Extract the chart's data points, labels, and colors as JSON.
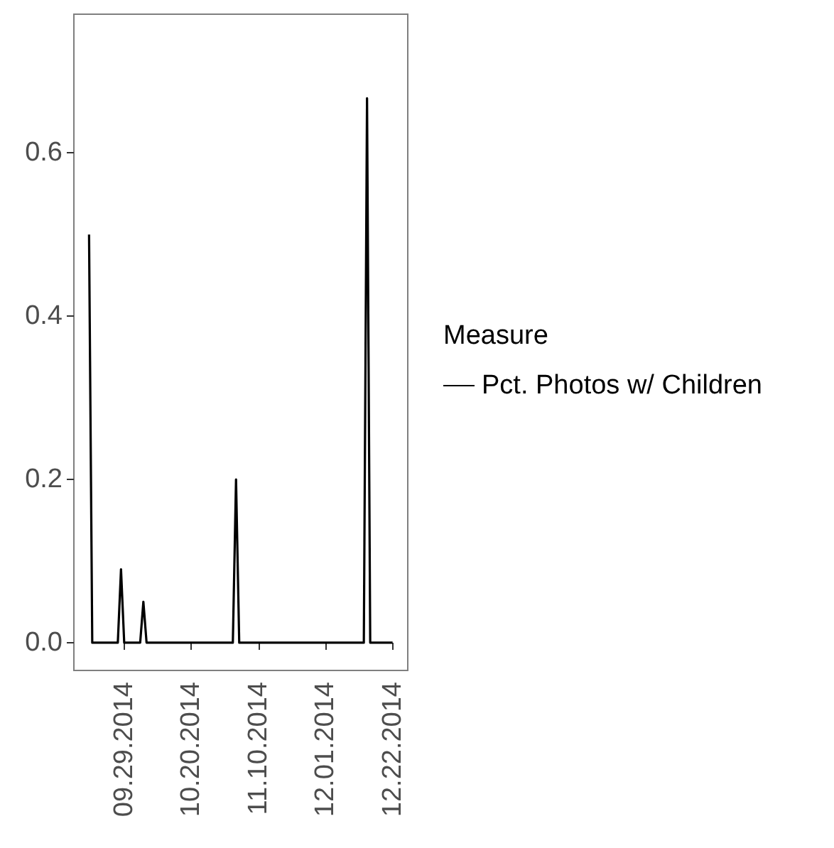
{
  "chart_data": {
    "type": "line",
    "legend_title": "Measure",
    "legend": "right",
    "grid": false,
    "marker": "none",
    "line_style": "solid",
    "x": [
      "2014-09-18",
      "2014-09-19",
      "2014-09-27",
      "2014-09-28",
      "2014-09-29",
      "2014-10-04",
      "2014-10-05",
      "2014-10-06",
      "2014-11-02",
      "2014-11-03",
      "2014-11-04",
      "2014-12-13",
      "2014-12-14",
      "2014-12-15",
      "2014-12-22"
    ],
    "series": [
      {
        "name": "Pct. Photos w/ Children",
        "color": "#000000",
        "values": [
          0.5,
          0,
          0,
          0.09,
          0,
          0,
          0.05,
          0,
          0,
          0.2,
          0,
          0,
          0.667,
          0,
          0
        ]
      }
    ],
    "xlim": [
      "2014-09-13T06:00",
      "2014-12-26T18:00"
    ],
    "xticks": [
      {
        "value": "2014-09-29",
        "label": "09.29.2014"
      },
      {
        "value": "2014-10-20",
        "label": "10.20.2014"
      },
      {
        "value": "2014-11-10",
        "label": "11.10.2014"
      },
      {
        "value": "2014-12-01",
        "label": "12.01.2014"
      },
      {
        "value": "2014-12-22",
        "label": "12.22.2014"
      }
    ],
    "ylim": [
      -0.034,
      0.77
    ],
    "yticks": [
      {
        "value": 0,
        "label": "0.0"
      },
      {
        "value": 0.2,
        "label": "0.2"
      },
      {
        "value": 0.4,
        "label": "0.4"
      },
      {
        "value": 0.6,
        "label": "0.6"
      }
    ]
  }
}
